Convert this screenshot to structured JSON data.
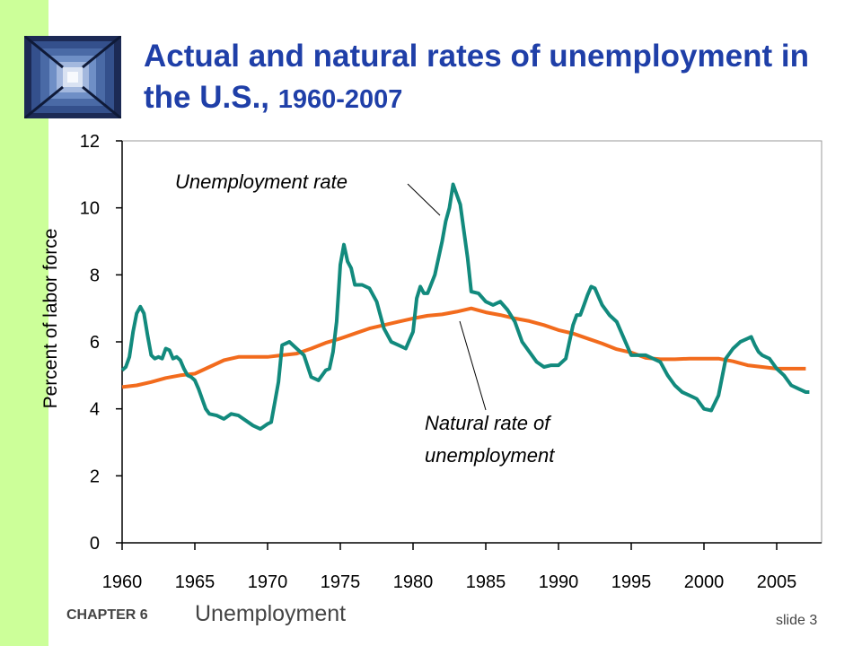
{
  "slide": {
    "title_main": "Actual and natural rates of unemployment in the U.S.",
    "title_sep": ", ",
    "title_years": "1960-2007",
    "chapter_label": "CHAPTER 6",
    "chapter_name": "Unemployment",
    "slide_label": "slide 3"
  },
  "colors": {
    "strip": "#ccff99",
    "title": "#1f3fa8",
    "unemployment": "#128a7d",
    "natural": "#f26b1d"
  },
  "icons": {
    "logo": "stairwell-photo-icon"
  },
  "chart_data": {
    "type": "line",
    "ylabel": "Percent of labor force",
    "xlabel": "",
    "xlim": [
      1960,
      2007.5
    ],
    "ylim": [
      0,
      12
    ],
    "yticks": [
      0,
      2,
      4,
      6,
      8,
      10,
      12
    ],
    "xticks": [
      1960,
      1965,
      1970,
      1975,
      1980,
      1985,
      1990,
      1995,
      2000,
      2005
    ],
    "grid": false,
    "annotations": [
      {
        "text": "Unemployment rate"
      },
      {
        "text": "Natural rate of"
      },
      {
        "text": "unemployment"
      }
    ],
    "series": [
      {
        "key": "unemployment",
        "x": [
          1960.0,
          1960.25,
          1960.5,
          1960.75,
          1961.0,
          1961.25,
          1961.5,
          1961.75,
          1962.0,
          1962.25,
          1962.5,
          1962.75,
          1963.0,
          1963.25,
          1963.5,
          1963.75,
          1964.0,
          1964.25,
          1964.5,
          1964.75,
          1965.0,
          1965.25,
          1965.5,
          1965.75,
          1966.0,
          1966.5,
          1967.0,
          1967.5,
          1968.0,
          1968.5,
          1969.0,
          1969.5,
          1970.0,
          1970.25,
          1970.5,
          1970.75,
          1971.0,
          1971.5,
          1972.0,
          1972.5,
          1973.0,
          1973.5,
          1974.0,
          1974.25,
          1974.5,
          1974.75,
          1975.0,
          1975.25,
          1975.5,
          1975.75,
          1976.0,
          1976.5,
          1977.0,
          1977.5,
          1978.0,
          1978.5,
          1979.0,
          1979.5,
          1980.0,
          1980.25,
          1980.5,
          1980.75,
          1981.0,
          1981.5,
          1982.0,
          1982.25,
          1982.5,
          1982.75,
          1983.0,
          1983.25,
          1983.5,
          1983.75,
          1984.0,
          1984.5,
          1985.0,
          1985.5,
          1986.0,
          1986.5,
          1987.0,
          1987.5,
          1988.0,
          1988.5,
          1989.0,
          1989.5,
          1990.0,
          1990.5,
          1991.0,
          1991.25,
          1991.5,
          1991.75,
          1992.0,
          1992.25,
          1992.5,
          1992.75,
          1993.0,
          1993.5,
          1994.0,
          1994.5,
          1995.0,
          1995.5,
          1996.0,
          1996.5,
          1997.0,
          1997.5,
          1998.0,
          1998.5,
          1999.0,
          1999.5,
          2000.0,
          2000.5,
          2001.0,
          2001.5,
          2002.0,
          2002.5,
          2003.0,
          2003.25,
          2003.5,
          2003.75,
          2004.0,
          2004.5,
          2005.0,
          2005.5,
          2006.0,
          2006.5,
          2007.0,
          2007.25
        ],
        "values": [
          5.15,
          5.25,
          5.55,
          6.3,
          6.85,
          7.05,
          6.85,
          6.2,
          5.6,
          5.5,
          5.55,
          5.5,
          5.8,
          5.75,
          5.5,
          5.55,
          5.45,
          5.2,
          5.0,
          4.95,
          4.85,
          4.6,
          4.3,
          4.0,
          3.85,
          3.8,
          3.7,
          3.85,
          3.8,
          3.65,
          3.5,
          3.4,
          3.55,
          3.6,
          4.2,
          4.8,
          5.9,
          6.0,
          5.8,
          5.6,
          4.95,
          4.85,
          5.15,
          5.2,
          5.7,
          6.6,
          8.3,
          8.9,
          8.4,
          8.2,
          7.7,
          7.7,
          7.6,
          7.2,
          6.4,
          6.0,
          5.9,
          5.8,
          6.3,
          7.3,
          7.65,
          7.45,
          7.45,
          8.0,
          9.0,
          9.6,
          10.0,
          10.7,
          10.4,
          10.1,
          9.3,
          8.5,
          7.5,
          7.45,
          7.2,
          7.1,
          7.2,
          6.95,
          6.6,
          6.0,
          5.7,
          5.4,
          5.25,
          5.3,
          5.3,
          5.5,
          6.5,
          6.8,
          6.8,
          7.1,
          7.4,
          7.65,
          7.6,
          7.35,
          7.1,
          6.8,
          6.6,
          6.1,
          5.6,
          5.6,
          5.6,
          5.5,
          5.4,
          5.0,
          4.7,
          4.5,
          4.4,
          4.3,
          4.0,
          3.95,
          4.4,
          5.5,
          5.8,
          6.0,
          6.1,
          6.15,
          5.9,
          5.7,
          5.6,
          5.5,
          5.2,
          5.0,
          4.7,
          4.6,
          4.5,
          4.5
        ]
      },
      {
        "key": "natural",
        "x": [
          1960,
          1961,
          1962,
          1963,
          1964,
          1965,
          1966,
          1967,
          1968,
          1969,
          1970,
          1971,
          1972,
          1973,
          1974,
          1975,
          1976,
          1977,
          1978,
          1979,
          1980,
          1981,
          1982,
          1983,
          1984,
          1985,
          1986,
          1987,
          1988,
          1989,
          1990,
          1991,
          1992,
          1993,
          1994,
          1995,
          1996,
          1997,
          1998,
          1999,
          2000,
          2001,
          2002,
          2003,
          2004,
          2005,
          2006,
          2007
        ],
        "values": [
          4.65,
          4.7,
          4.8,
          4.92,
          5.0,
          5.05,
          5.25,
          5.45,
          5.55,
          5.55,
          5.55,
          5.6,
          5.65,
          5.8,
          5.97,
          6.1,
          6.25,
          6.4,
          6.5,
          6.6,
          6.7,
          6.78,
          6.82,
          6.9,
          7.0,
          6.88,
          6.8,
          6.7,
          6.62,
          6.5,
          6.35,
          6.25,
          6.1,
          5.95,
          5.78,
          5.68,
          5.52,
          5.48,
          5.48,
          5.5,
          5.5,
          5.5,
          5.42,
          5.3,
          5.25,
          5.2,
          5.2,
          5.2
        ]
      }
    ]
  }
}
